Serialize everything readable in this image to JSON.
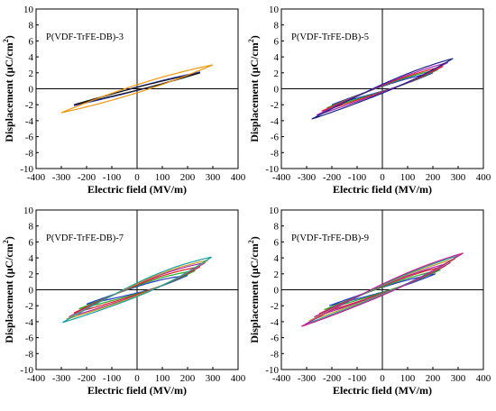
{
  "chart_data": [
    {
      "type": "line",
      "label": "P(VDF-TrFE-DB)-3",
      "xlabel": "Electric field (MV/m)",
      "ylabel_main": "Displacement (μC/cm",
      "ylabel_sup": "2",
      "ylabel_close": ")",
      "xlim": [
        -400,
        400
      ],
      "ylim": [
        -10,
        10
      ],
      "xticks": [
        "-400",
        "-300",
        "-200",
        "-100",
        "0",
        "100",
        "200",
        "300",
        "400"
      ],
      "yticks": [
        "-10",
        "-8",
        "-6",
        "-4",
        "-2",
        "0",
        "2",
        "4",
        "6",
        "8",
        "10"
      ],
      "grid": false,
      "loops": [
        {
          "color": "#2233cc",
          "emax": 250,
          "pmax": 2.1,
          "hw": 0.22,
          "bulge": 0.1
        },
        {
          "color": "#1a1a1a",
          "emax": 250,
          "pmax": 2.0,
          "hw": 0.18,
          "bulge": 0.1
        },
        {
          "color": "#f0960a",
          "emax": 300,
          "pmax": 3.0,
          "hw": 0.5,
          "bulge": 0.1
        }
      ]
    },
    {
      "type": "line",
      "label": "P(VDF-TrFE-DB)-5",
      "xlabel": "Electric field (MV/m)",
      "ylabel_main": "Displacement (μC/cm",
      "ylabel_sup": "2",
      "ylabel_close": ")",
      "xlim": [
        -400,
        400
      ],
      "ylim": [
        -10,
        10
      ],
      "xticks": [
        "-400",
        "-300",
        "-200",
        "-100",
        "0",
        "100",
        "200",
        "300",
        "400"
      ],
      "yticks": [
        "-10",
        "-8",
        "-6",
        "-4",
        "-2",
        "0",
        "2",
        "4",
        "6",
        "8",
        "10"
      ],
      "grid": false,
      "loops": [
        {
          "color": "#2233cc",
          "emax": 200,
          "pmax": 2.0,
          "hw": 0.3,
          "bulge": 0.35
        },
        {
          "color": "#22aa22",
          "emax": 220,
          "pmax": 2.4,
          "hw": 0.35,
          "bulge": 0.4
        },
        {
          "color": "#dd2222",
          "emax": 240,
          "pmax": 2.8,
          "hw": 0.4,
          "bulge": 0.4
        },
        {
          "color": "#aa22aa",
          "emax": 260,
          "pmax": 3.3,
          "hw": 0.45,
          "bulge": 0.4
        },
        {
          "color": "#1a2288",
          "emax": 280,
          "pmax": 3.8,
          "hw": 0.55,
          "bulge": 0.45
        }
      ]
    },
    {
      "type": "line",
      "label": "P(VDF-TrFE-DB)-7",
      "xlabel": "Electric field (MV/m)",
      "ylabel_main": "Displacement (μC/cm",
      "ylabel_sup": "2",
      "ylabel_close": ")",
      "xlim": [
        -400,
        400
      ],
      "ylim": [
        -10,
        10
      ],
      "xticks": [
        "-400",
        "-300",
        "-200",
        "-100",
        "0",
        "100",
        "200",
        "300",
        "400"
      ],
      "yticks": [
        "-10",
        "-8",
        "-6",
        "-4",
        "-2",
        "0",
        "2",
        "4",
        "6",
        "8",
        "10"
      ],
      "grid": false,
      "loops": [
        {
          "color": "#2233cc",
          "emax": 200,
          "pmax": 1.8,
          "hw": 0.4,
          "bulge": 0.5
        },
        {
          "color": "#22aa22",
          "emax": 230,
          "pmax": 2.4,
          "hw": 0.5,
          "bulge": 0.55
        },
        {
          "color": "#dd2222",
          "emax": 250,
          "pmax": 2.9,
          "hw": 0.6,
          "bulge": 0.6
        },
        {
          "color": "#aa22aa",
          "emax": 270,
          "pmax": 3.4,
          "hw": 0.7,
          "bulge": 0.65
        },
        {
          "color": "#caa020",
          "emax": 280,
          "pmax": 3.7,
          "hw": 0.75,
          "bulge": 0.7
        },
        {
          "color": "#18a0a0",
          "emax": 295,
          "pmax": 4.1,
          "hw": 0.85,
          "bulge": 0.75
        }
      ]
    },
    {
      "type": "line",
      "label": "P(VDF-TrFE-DB)-9",
      "xlabel": "Electric field (MV/m)",
      "ylabel_main": "Displacement (μC/cm",
      "ylabel_sup": "2",
      "ylabel_close": ")",
      "xlim": [
        -400,
        400
      ],
      "ylim": [
        -10,
        10
      ],
      "xticks": [
        "-400",
        "-300",
        "-200",
        "-100",
        "0",
        "100",
        "200",
        "300",
        "400"
      ],
      "yticks": [
        "-10",
        "-8",
        "-6",
        "-4",
        "-2",
        "0",
        "2",
        "4",
        "6",
        "8",
        "10"
      ],
      "grid": false,
      "loops": [
        {
          "color": "#2233cc",
          "emax": 210,
          "pmax": 2.0,
          "hw": 0.3,
          "bulge": 0.3
        },
        {
          "color": "#22aa22",
          "emax": 230,
          "pmax": 2.5,
          "hw": 0.35,
          "bulge": 0.35
        },
        {
          "color": "#dd2222",
          "emax": 250,
          "pmax": 3.0,
          "hw": 0.45,
          "bulge": 0.4
        },
        {
          "color": "#aa22aa",
          "emax": 270,
          "pmax": 3.4,
          "hw": 0.5,
          "bulge": 0.4
        },
        {
          "color": "#caa020",
          "emax": 290,
          "pmax": 3.9,
          "hw": 0.55,
          "bulge": 0.45
        },
        {
          "color": "#18a0a0",
          "emax": 305,
          "pmax": 4.3,
          "hw": 0.6,
          "bulge": 0.45
        },
        {
          "color": "#c81e8c",
          "emax": 320,
          "pmax": 4.6,
          "hw": 0.7,
          "bulge": 0.5
        }
      ]
    }
  ]
}
